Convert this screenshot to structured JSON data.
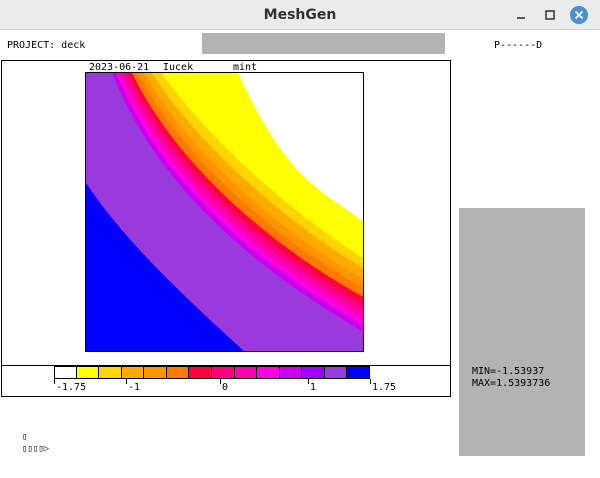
{
  "window": {
    "title": "MeshGen"
  },
  "header": {
    "project": "PROJECT: deck",
    "code": "P------D"
  },
  "plot": {
    "date": "2023-06-21",
    "user": "Iucek",
    "field": "mint"
  },
  "legend": {
    "colors": [
      "#ffffff",
      "#ffff00",
      "#ffd500",
      "#ffaa00",
      "#ff9400",
      "#ff7a00",
      "#ff0040",
      "#ff0080",
      "#ff00b0",
      "#ff00e0",
      "#cc00ee",
      "#a000ff",
      "#9a3adc",
      "#0000ff"
    ],
    "ticks": [
      "-1.75",
      "-1",
      "0",
      "1",
      "1.75"
    ]
  },
  "stats": {
    "min": "MIN=-1.53937",
    "max": "MAX=1.5393736"
  },
  "console": {
    "line1": "▯",
    "line2": "▯▯▯▯▷"
  }
}
